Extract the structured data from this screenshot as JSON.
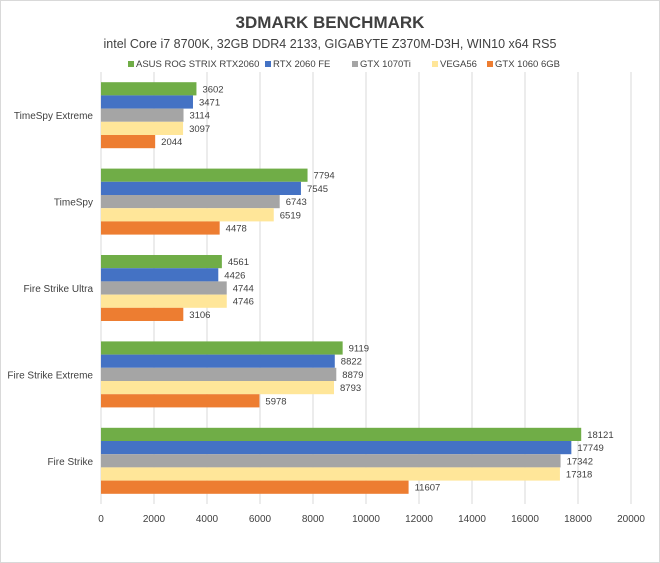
{
  "chart_data": {
    "type": "bar",
    "orientation": "horizontal",
    "title": "3DMARK BENCHMARK",
    "subtitle": "intel Core i7 8700K, 32GB DDR4 2133, GIGABYTE Z370M-D3H, WIN10 x64 RS5",
    "categories": [
      "TimeSpy Extreme",
      "TimeSpy",
      "Fire Strike Ultra",
      "Fire Strike Extreme",
      "Fire Strike"
    ],
    "series": [
      {
        "name": "ASUS ROG STRIX RTX2060",
        "color": "#70ad47",
        "values": [
          3602,
          7794,
          4561,
          9119,
          18121
        ]
      },
      {
        "name": "RTX 2060 FE",
        "color": "#4472c4",
        "values": [
          3471,
          7545,
          4426,
          8822,
          17749
        ]
      },
      {
        "name": "GTX 1070Ti",
        "color": "#a5a5a5",
        "values": [
          3114,
          6743,
          4744,
          8879,
          17342
        ]
      },
      {
        "name": "VEGA56",
        "color": "#ffe699",
        "values": [
          3097,
          6519,
          4746,
          8793,
          17318
        ]
      },
      {
        "name": "GTX 1060 6GB",
        "color": "#ed7d31",
        "values": [
          2044,
          4478,
          3106,
          5978,
          11607
        ]
      }
    ],
    "xlim": [
      0,
      20000
    ],
    "xticks": [
      0,
      2000,
      4000,
      6000,
      8000,
      10000,
      12000,
      14000,
      16000,
      18000,
      20000
    ],
    "xlabel": "",
    "ylabel": "",
    "grid": "vertical",
    "legend_position": "top"
  }
}
